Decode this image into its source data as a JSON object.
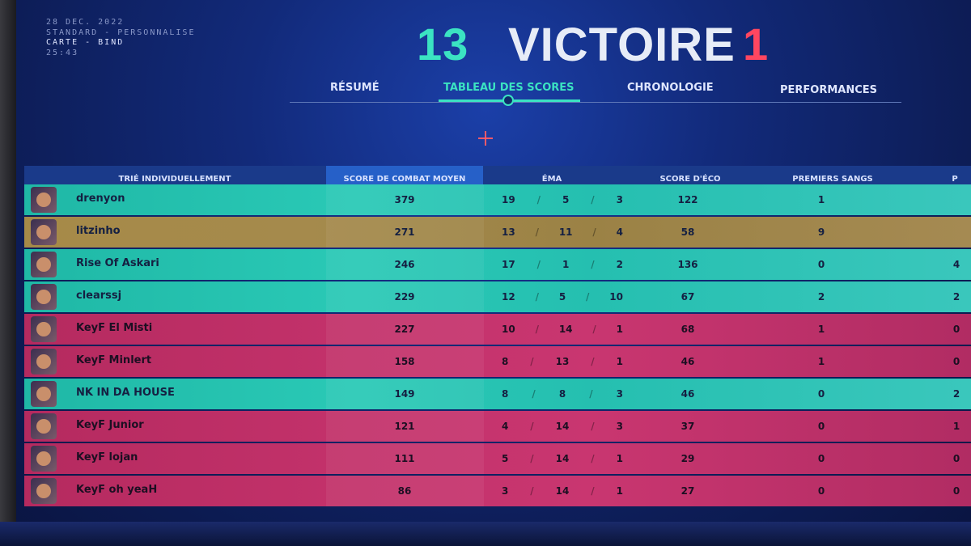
{
  "match": {
    "date": "28 DEC. 2022",
    "mode": "STANDARD - PERSONNALISE",
    "map": "CARTE - BIND",
    "duration": "25:43"
  },
  "result": {
    "score_left": "13",
    "label": "VICTOIRE",
    "score_right": "1",
    "colors": {
      "left": "#3be3c2",
      "right": "#ff4660"
    }
  },
  "tabs": [
    {
      "label": "RÉSUMÉ"
    },
    {
      "label": "TABLEAU DES SCORES"
    },
    {
      "label": "CHRONOLOGIE"
    },
    {
      "label": "PERFORMANCES"
    }
  ],
  "active_tab": "TABLEAU DES SCORES",
  "table": {
    "headers": {
      "sort": "TRIÉ INDIVIDUELLEMENT",
      "acs": "SCORE DE COMBAT MOYEN",
      "kda": "ÉMA",
      "eco": "SCORE D'ÉCO",
      "first_bloods": "PREMIERS SANGS",
      "next": "P"
    },
    "rows": [
      {
        "team": "a",
        "name": "drenyon",
        "acs": "379",
        "k": "19",
        "d": "5",
        "a": "3",
        "eco": "122",
        "fb": "1",
        "next": ""
      },
      {
        "team": "self",
        "name": "litzinho",
        "acs": "271",
        "k": "13",
        "d": "11",
        "a": "4",
        "eco": "58",
        "fb": "9",
        "next": ""
      },
      {
        "team": "a",
        "name": "Rise Of Askari",
        "acs": "246",
        "k": "17",
        "d": "1",
        "a": "2",
        "eco": "136",
        "fb": "0",
        "next": "4"
      },
      {
        "team": "a",
        "name": "clearssj",
        "acs": "229",
        "k": "12",
        "d": "5",
        "a": "10",
        "eco": "67",
        "fb": "2",
        "next": "2"
      },
      {
        "team": "b",
        "name": "KeyF El Misti",
        "acs": "227",
        "k": "10",
        "d": "14",
        "a": "1",
        "eco": "68",
        "fb": "1",
        "next": "0"
      },
      {
        "team": "b",
        "name": "KeyF Minlert",
        "acs": "158",
        "k": "8",
        "d": "13",
        "a": "1",
        "eco": "46",
        "fb": "1",
        "next": "0"
      },
      {
        "team": "a",
        "name": "NK IN DA HOUSE",
        "acs": "149",
        "k": "8",
        "d": "8",
        "a": "3",
        "eco": "46",
        "fb": "0",
        "next": "2"
      },
      {
        "team": "b",
        "name": "KeyF Junior",
        "acs": "121",
        "k": "4",
        "d": "14",
        "a": "3",
        "eco": "37",
        "fb": "0",
        "next": "1"
      },
      {
        "team": "b",
        "name": "KeyF lojan",
        "acs": "111",
        "k": "5",
        "d": "14",
        "a": "1",
        "eco": "29",
        "fb": "0",
        "next": "0"
      },
      {
        "team": "b",
        "name": "KeyF oh yeaH",
        "acs": "86",
        "k": "3",
        "d": "14",
        "a": "1",
        "eco": "27",
        "fb": "0",
        "next": "0"
      }
    ]
  }
}
